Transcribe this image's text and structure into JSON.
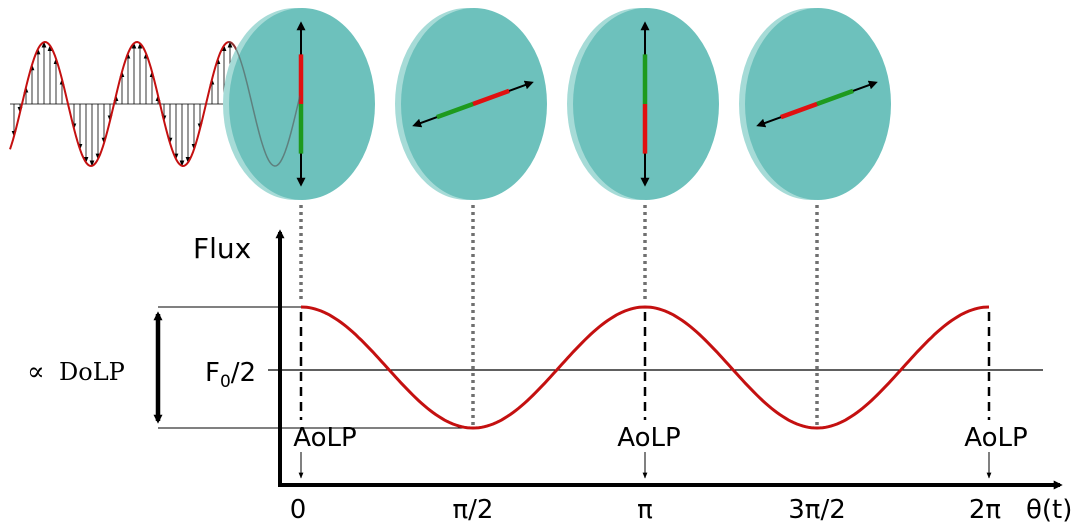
{
  "labels": {
    "flux": "Flux",
    "theta": "θ(t)",
    "f0_main": "F",
    "f0_sub": "0",
    "f0_tail": "/2",
    "dolp_prefix": "∝",
    "dolp_text": "DoLP",
    "aolp": "AoLP"
  },
  "ticks": [
    "0",
    "π/2",
    "π",
    "3π/2",
    "2π"
  ],
  "colors": {
    "disk": "#6dc1bc",
    "disk_edge": "#a6dbd7",
    "curve": "#c41010",
    "red_arrow": "#e01010",
    "green_arrow": "#1e9a1e",
    "dotted": "#707070"
  }
}
